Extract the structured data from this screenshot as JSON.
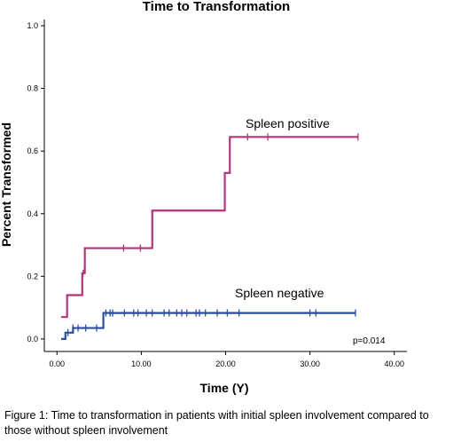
{
  "chart_data": {
    "type": "line",
    "title": "Time to Transformation",
    "xlabel": "Time (Y)",
    "ylabel": "Percent Transformed",
    "xlim": [
      -1.5,
      41.5
    ],
    "ylim": [
      -0.04,
      1.02
    ],
    "x_ticks": [
      0,
      10,
      20,
      30,
      40
    ],
    "x_tick_labels": [
      "0.00",
      "10.00",
      "20.00",
      "30.00",
      "40.00"
    ],
    "y_ticks": [
      0,
      0.2,
      0.4,
      0.6,
      0.8,
      1.0
    ],
    "y_tick_labels": [
      "0.0",
      "0.2",
      "0.4",
      "0.6",
      "0.8",
      "1.0"
    ],
    "grid": false,
    "step": true,
    "series": [
      {
        "name": "Spleen positive",
        "color": "#b0357a",
        "x": [
          0.5,
          1.2,
          3.0,
          3.3,
          11.3,
          19.9,
          20.5,
          35.7
        ],
        "y": [
          0.07,
          0.14,
          0.21,
          0.29,
          0.41,
          0.53,
          0.645,
          0.645
        ],
        "censored": [
          3.1,
          7.9,
          9.9,
          22.6,
          25.0,
          35.7
        ]
      },
      {
        "name": "Spleen negative",
        "color": "#2a4fa0",
        "x": [
          0.5,
          1.0,
          1.9,
          5.5,
          35.4
        ],
        "y": [
          0.0,
          0.02,
          0.035,
          0.083,
          0.083
        ],
        "censored": [
          1.3,
          1.9,
          2.5,
          3.4,
          4.7,
          5.8,
          6.3,
          6.6,
          8.0,
          9.1,
          9.6,
          10.6,
          11.3,
          12.7,
          13.3,
          14.2,
          14.8,
          15.4,
          16.5,
          16.9,
          17.6,
          19.0,
          20.2,
          21.6,
          30.0,
          30.7,
          35.4
        ]
      }
    ],
    "annotations": [
      "p=0.014"
    ]
  },
  "caption": "Figure 1: Time to transformation in patients with initial spleen involvement compared to those without spleen involvement"
}
